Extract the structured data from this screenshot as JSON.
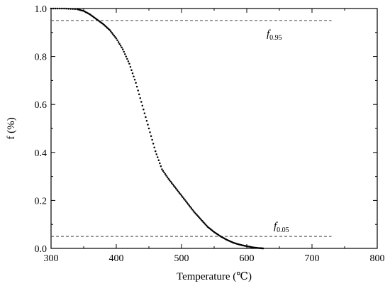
{
  "chart_data": {
    "type": "scatter",
    "title": "",
    "xlabel": "Temperature (℃)",
    "ylabel": "f (%)",
    "xlim": [
      300,
      800
    ],
    "ylim": [
      0,
      1.0
    ],
    "x_ticks": [
      "300",
      "400",
      "500",
      "600",
      "700",
      "800"
    ],
    "y_ticks": [
      "0.0",
      "0.2",
      "0.4",
      "0.6",
      "0.8",
      "1.0"
    ],
    "grid": false,
    "legend": "none",
    "series": [
      {
        "color": "#000000",
        "x": [
          300,
          320,
          340,
          350,
          360,
          370,
          380,
          390,
          400,
          410,
          420,
          430,
          440,
          450,
          460,
          470,
          480,
          490,
          500,
          510,
          520,
          530,
          540,
          550,
          560,
          570,
          580,
          590,
          600,
          610,
          620,
          625
        ],
        "y": [
          1.0,
          1.0,
          0.997,
          0.99,
          0.975,
          0.955,
          0.935,
          0.91,
          0.875,
          0.83,
          0.77,
          0.69,
          0.595,
          0.5,
          0.405,
          0.33,
          0.29,
          0.255,
          0.22,
          0.185,
          0.15,
          0.12,
          0.09,
          0.068,
          0.05,
          0.035,
          0.023,
          0.015,
          0.009,
          0.004,
          0.001,
          0.0
        ]
      }
    ],
    "reference_lines": [
      {
        "y": 0.95,
        "x_range": [
          300,
          730
        ],
        "label_main": "f",
        "label_sub": "0.95"
      },
      {
        "y": 0.05,
        "x_range": [
          300,
          730
        ],
        "label_main": "f",
        "label_sub": "0.05"
      }
    ]
  }
}
